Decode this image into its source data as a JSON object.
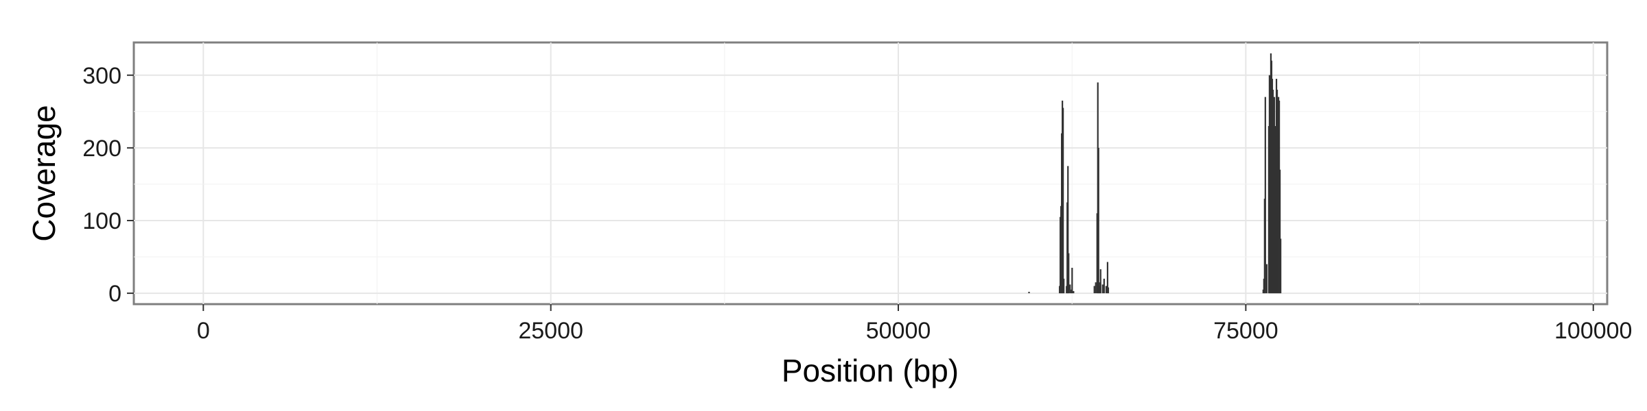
{
  "chart_data": {
    "type": "bar",
    "xlabel": "Position (bp)",
    "ylabel": "Coverage",
    "xlim": [
      -5000,
      101000
    ],
    "ylim": [
      -15,
      345
    ],
    "x_ticks": [
      0,
      25000,
      50000,
      75000,
      100000
    ],
    "x_tick_labels": [
      "0",
      "25000",
      "50000",
      "75000",
      "100000"
    ],
    "y_ticks": [
      0,
      100,
      200,
      300
    ],
    "y_tick_labels": [
      "0",
      "100",
      "200",
      "300"
    ],
    "grid": true,
    "legend": "none",
    "bar_color": "#333333",
    "panel_border_color": "#7f7f7f",
    "grid_color": "#e6e6e6",
    "x": [
      59400,
      61600,
      61650,
      61700,
      61750,
      61800,
      61850,
      61900,
      62100,
      62150,
      62200,
      62250,
      62350,
      62450,
      62500,
      62600,
      64100,
      64200,
      64300,
      64350,
      64400,
      64450,
      64500,
      64550,
      64700,
      64800,
      64950,
      65050,
      65100,
      76250,
      76300,
      76350,
      76400,
      76500,
      76650,
      76700,
      76750,
      76800,
      76850,
      76900,
      76950,
      77000,
      77050,
      77100,
      77150,
      77200,
      77250,
      77300,
      77350,
      77400,
      77450,
      77500
    ],
    "values": [
      2,
      10,
      105,
      120,
      220,
      265,
      255,
      20,
      10,
      125,
      175,
      55,
      12,
      5,
      35,
      3,
      10,
      15,
      110,
      290,
      200,
      15,
      10,
      33,
      12,
      20,
      10,
      43,
      8,
      5,
      20,
      130,
      270,
      40,
      230,
      300,
      285,
      330,
      320,
      295,
      280,
      260,
      270,
      150,
      230,
      295,
      280,
      250,
      270,
      265,
      170,
      75
    ]
  }
}
